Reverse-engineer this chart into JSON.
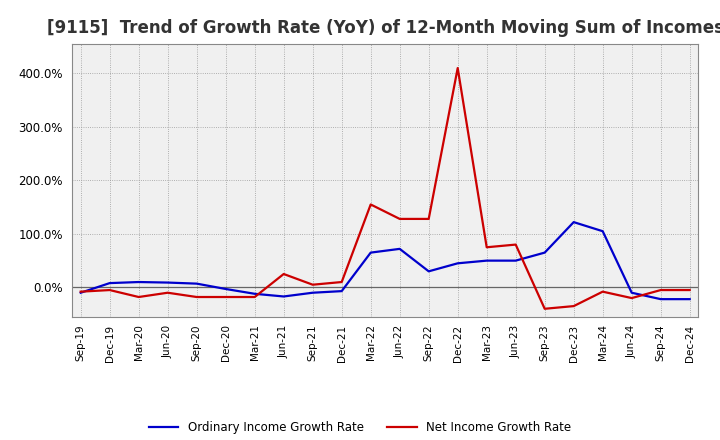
{
  "title": "[9115]  Trend of Growth Rate (YoY) of 12-Month Moving Sum of Incomes",
  "title_fontsize": 12,
  "background_color": "#ffffff",
  "plot_bg_color": "#f0f0f0",
  "grid_color": "#999999",
  "x_labels": [
    "Sep-19",
    "Dec-19",
    "Mar-20",
    "Jun-20",
    "Sep-20",
    "Dec-20",
    "Mar-21",
    "Jun-21",
    "Sep-21",
    "Dec-21",
    "Mar-22",
    "Jun-22",
    "Sep-22",
    "Dec-22",
    "Mar-23",
    "Jun-23",
    "Sep-23",
    "Dec-23",
    "Mar-24",
    "Jun-24",
    "Sep-24",
    "Dec-24"
  ],
  "ordinary_income": [
    -0.1,
    0.08,
    0.1,
    0.09,
    0.07,
    -0.03,
    -0.12,
    -0.17,
    -0.1,
    -0.07,
    0.65,
    0.72,
    0.3,
    0.45,
    0.5,
    0.5,
    0.65,
    1.22,
    1.05,
    -0.1,
    -0.22,
    -0.22
  ],
  "net_income": [
    -0.08,
    -0.05,
    -0.18,
    -0.1,
    -0.18,
    -0.18,
    -0.18,
    0.25,
    0.05,
    0.1,
    1.55,
    1.28,
    1.28,
    4.1,
    0.75,
    0.8,
    -0.4,
    -0.35,
    -0.08,
    -0.2,
    -0.05,
    -0.05
  ],
  "ordinary_color": "#0000cc",
  "net_color": "#cc0000",
  "ylim_min": -0.55,
  "ylim_max": 4.55,
  "yticks": [
    0.0,
    1.0,
    2.0,
    3.0,
    4.0
  ],
  "ytick_labels": [
    "0.0%",
    "100.0%",
    "200.0%",
    "300.0%",
    "400.0%"
  ],
  "legend_ordinary": "Ordinary Income Growth Rate",
  "legend_net": "Net Income Growth Rate",
  "line_width": 1.6
}
